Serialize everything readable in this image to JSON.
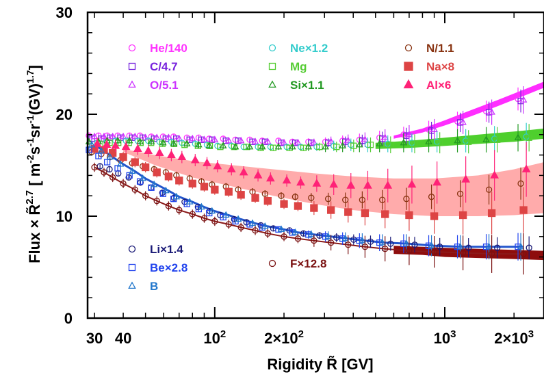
{
  "chart_data": {
    "type": "scatter",
    "xscale": "log",
    "xlim": [
      28,
      2700
    ],
    "ylim": [
      0,
      30
    ],
    "xlabel": "Rigidity R̃ [GV]",
    "ylabel": "Flux × R̃",
    "ylabel_sup": "2.7",
    "ylabel_units": "[ m",
    "ylabel_units_parts": [
      "-2",
      "s",
      "-1",
      "sr",
      "-1",
      "(GV)",
      "1.7",
      "]"
    ],
    "x_ticks": [
      {
        "value": 30,
        "label": "30"
      },
      {
        "value": 40,
        "label": "40"
      },
      {
        "value": 100,
        "label": "10",
        "sup": "2"
      },
      {
        "value": 200,
        "label": "2×10",
        "sup": "2"
      },
      {
        "value": 1000,
        "label": "10",
        "sup": "3"
      },
      {
        "value": 2000,
        "label": "2×10",
        "sup": "3"
      }
    ],
    "y_ticks": [
      {
        "value": 0,
        "label": "0"
      },
      {
        "value": 10,
        "label": "10"
      },
      {
        "value": 20,
        "label": "20"
      },
      {
        "value": 30,
        "label": "30"
      }
    ],
    "grid": false,
    "x": [
      30,
      33,
      36,
      40,
      45,
      50,
      56,
      63,
      70,
      80,
      90,
      100,
      115,
      130,
      150,
      170,
      200,
      230,
      270,
      320,
      380,
      450,
      550,
      700,
      900,
      1200,
      1600,
      2200
    ],
    "series": [
      {
        "name": "He/140",
        "color": "#ff33ff",
        "marker": "circle-open",
        "values": [
          17.9,
          17.9,
          17.9,
          17.9,
          17.9,
          17.9,
          17.8,
          17.8,
          17.8,
          17.7,
          17.7,
          17.6,
          17.6,
          17.5,
          17.5,
          17.4,
          17.4,
          17.3,
          17.3,
          17.3,
          17.4,
          17.5,
          17.7,
          18.0,
          18.5,
          19.3,
          20.3,
          21.5
        ]
      },
      {
        "name": "C/4.7",
        "color": "#7722dd",
        "marker": "square-open",
        "values": [
          17.6,
          17.6,
          17.7,
          17.7,
          17.7,
          17.7,
          17.6,
          17.6,
          17.6,
          17.5,
          17.5,
          17.5,
          17.4,
          17.4,
          17.3,
          17.3,
          17.2,
          17.2,
          17.2,
          17.2,
          17.3,
          17.4,
          17.6,
          17.9,
          18.4,
          19.2,
          20.2,
          21.3
        ]
      },
      {
        "name": "O/5.1",
        "color": "#cc33ff",
        "marker": "triangle-open",
        "values": [
          17.8,
          17.8,
          17.8,
          17.8,
          17.8,
          17.7,
          17.7,
          17.7,
          17.6,
          17.6,
          17.5,
          17.5,
          17.4,
          17.4,
          17.3,
          17.3,
          17.2,
          17.2,
          17.2,
          17.3,
          17.4,
          17.5,
          17.7,
          18.0,
          18.5,
          19.2,
          20.2,
          21.4
        ]
      },
      {
        "name": "Ne×1.2",
        "color": "#33cccc",
        "marker": "circle-open",
        "values": [
          17.2,
          17.3,
          17.4,
          17.4,
          17.4,
          17.4,
          17.3,
          17.3,
          17.2,
          17.1,
          17.0,
          16.9,
          16.9,
          16.8,
          16.8,
          16.8,
          16.8,
          16.8,
          16.8,
          16.9,
          17.0,
          17.0,
          17.1,
          17.2,
          17.3,
          17.4,
          17.6,
          17.8
        ]
      },
      {
        "name": "Mg",
        "color": "#55cc33",
        "marker": "square-open",
        "values": [
          17.1,
          17.2,
          17.2,
          17.2,
          17.2,
          17.2,
          17.1,
          17.1,
          17.0,
          16.9,
          16.9,
          16.8,
          16.8,
          16.8,
          16.7,
          16.7,
          16.7,
          16.7,
          16.8,
          16.8,
          16.9,
          17.0,
          17.0,
          17.1,
          17.2,
          17.3,
          17.5,
          17.7
        ]
      },
      {
        "name": "Si×1.1",
        "color": "#229922",
        "marker": "triangle-open",
        "values": [
          17.3,
          17.3,
          17.4,
          17.4,
          17.4,
          17.3,
          17.3,
          17.2,
          17.1,
          17.1,
          17.0,
          16.9,
          16.9,
          16.8,
          16.8,
          16.8,
          16.8,
          16.8,
          16.8,
          16.8,
          16.9,
          17.0,
          17.1,
          17.2,
          17.3,
          17.4,
          17.5,
          17.7
        ]
      },
      {
        "name": "N/1.1",
        "color": "#883311",
        "marker": "circle-open",
        "values": [
          16.3,
          16.1,
          15.8,
          15.5,
          15.2,
          14.9,
          14.6,
          14.3,
          14.0,
          13.7,
          13.4,
          13.1,
          12.9,
          12.6,
          12.4,
          12.2,
          12.0,
          11.9,
          11.8,
          11.7,
          11.6,
          11.6,
          11.6,
          11.7,
          11.9,
          12.2,
          12.6,
          13.2
        ]
      },
      {
        "name": "Na×8",
        "color": "#dd4444",
        "marker": "square-filled",
        "values": [
          16.6,
          16.5,
          16.2,
          15.8,
          15.3,
          14.8,
          14.3,
          13.9,
          13.5,
          13.2,
          12.9,
          12.6,
          12.4,
          12.1,
          11.8,
          11.5,
          11.2,
          11.0,
          10.8,
          10.6,
          10.4,
          10.3,
          10.2,
          10.1,
          10.0,
          10.1,
          10.3,
          10.6
        ]
      },
      {
        "name": "Al×6",
        "color": "#ff2277",
        "marker": "triangle-filled",
        "values": [
          17.1,
          17.0,
          16.9,
          16.8,
          16.6,
          16.4,
          16.2,
          16.0,
          15.8,
          15.5,
          15.2,
          14.9,
          14.6,
          14.3,
          14.0,
          13.7,
          13.5,
          13.3,
          13.2,
          13.1,
          13.0,
          13.0,
          13.0,
          13.1,
          13.3,
          13.6,
          14.0,
          14.6
        ]
      },
      {
        "name": "Li×1.4",
        "color": "#1a1a77",
        "marker": "circle-open",
        "values": [
          14.9,
          14.6,
          14.2,
          13.8,
          13.3,
          12.8,
          12.3,
          11.8,
          11.4,
          10.9,
          10.5,
          10.1,
          9.7,
          9.4,
          9.1,
          8.8,
          8.6,
          8.3,
          8.1,
          7.9,
          7.7,
          7.5,
          7.3,
          7.2,
          7.0,
          6.9,
          6.9,
          6.9
        ]
      },
      {
        "name": "Be×2.8",
        "color": "#2244ee",
        "marker": "square-open",
        "values": [
          16.5,
          15.9,
          15.3,
          14.7,
          14.0,
          13.4,
          12.8,
          12.2,
          11.7,
          11.2,
          10.7,
          10.3,
          9.9,
          9.5,
          9.2,
          8.9,
          8.7,
          8.4,
          8.2,
          8.0,
          7.8,
          7.6,
          7.4,
          7.3,
          7.1,
          7.0,
          7.0,
          7.0
        ]
      },
      {
        "name": "B",
        "color": "#2277cc",
        "marker": "triangle-open",
        "values": [
          17.0,
          16.4,
          15.8,
          15.1,
          14.4,
          13.7,
          13.1,
          12.5,
          11.9,
          11.4,
          10.9,
          10.5,
          10.1,
          9.7,
          9.3,
          9.0,
          8.7,
          8.4,
          8.2,
          8.0,
          7.8,
          7.6,
          7.4,
          7.3,
          7.1,
          7.0,
          7.0,
          7.0
        ]
      },
      {
        "name": "F×12.8",
        "color": "#7a1111",
        "marker": "circle-open",
        "values": [
          14.8,
          14.3,
          13.8,
          13.2,
          12.6,
          12.0,
          11.5,
          11.0,
          10.6,
          10.2,
          9.8,
          9.5,
          9.2,
          8.9,
          8.6,
          8.3,
          8.0,
          7.8,
          7.6,
          7.4,
          7.2,
          7.0,
          6.8,
          6.6,
          6.5,
          6.4,
          6.3,
          6.3
        ]
      }
    ],
    "bands": [
      {
        "series": "He/140",
        "x": [
          600,
          800,
          1000,
          1300,
          1700,
          2200,
          2700
        ],
        "lower": [
          17.6,
          18.2,
          18.9,
          19.8,
          20.8,
          21.8,
          22.6
        ],
        "upper": [
          17.9,
          18.6,
          19.4,
          20.4,
          21.4,
          22.4,
          23.2
        ]
      },
      {
        "series": "Ne/Mg/Si",
        "x": [
          500,
          700,
          1000,
          1400,
          2000,
          2700
        ],
        "lower": [
          16.6,
          16.7,
          16.9,
          17.1,
          17.3,
          17.6
        ],
        "upper": [
          17.2,
          17.4,
          17.7,
          18.0,
          18.3,
          18.6
        ]
      },
      {
        "series": "Na/Al",
        "x": [
          40,
          55,
          80,
          120,
          180,
          270,
          400,
          600,
          900,
          1400,
          2000,
          2700
        ],
        "lower": [
          16.3,
          15.0,
          13.8,
          12.9,
          12.0,
          11.2,
          10.6,
          10.2,
          10.0,
          10.0,
          10.1,
          10.3
        ],
        "upper": [
          16.6,
          16.0,
          15.4,
          15.0,
          14.6,
          14.2,
          13.9,
          13.7,
          13.7,
          14.0,
          14.6,
          15.3
        ]
      },
      {
        "series": "F×12.8",
        "x": [
          600,
          800,
          1000,
          1400,
          2000,
          2700
        ],
        "lower": [
          6.3,
          6.2,
          6.0,
          5.9,
          5.8,
          5.7
        ],
        "upper": [
          7.1,
          7.0,
          6.9,
          6.8,
          6.7,
          6.6
        ]
      }
    ],
    "legend": [
      {
        "label": "He/140",
        "color": "#ff33ff",
        "marker": "circle-open"
      },
      {
        "label": "C/4.7",
        "color": "#7722dd",
        "marker": "square-open"
      },
      {
        "label": "O/5.1",
        "color": "#cc33ff",
        "marker": "triangle-open"
      },
      {
        "label": "Ne×1.2",
        "color": "#33cccc",
        "marker": "circle-open"
      },
      {
        "label": "Mg",
        "color": "#55cc33",
        "marker": "square-open"
      },
      {
        "label": "Si×1.1",
        "color": "#229922",
        "marker": "triangle-open"
      },
      {
        "label": "N/1.1",
        "color": "#883311",
        "marker": "circle-open"
      },
      {
        "label": "Na×8",
        "color": "#dd4444",
        "marker": "square-filled"
      },
      {
        "label": "Al×6",
        "color": "#ff2277",
        "marker": "triangle-filled"
      },
      {
        "label": "Li×1.4",
        "color": "#1a1a77",
        "marker": "circle-open"
      },
      {
        "label": "Be×2.8",
        "color": "#2244ee",
        "marker": "square-open"
      },
      {
        "label": "B",
        "color": "#2277cc",
        "marker": "triangle-open"
      },
      {
        "label": "F×12.8",
        "color": "#7a1111",
        "marker": "circle-open"
      }
    ],
    "colors": {
      "He_band": "#ff22ff",
      "NeMgSi_band": "#44cc22",
      "NaAl_band": "#ff6666",
      "LiBeB_band": "#2255cc",
      "F_band": "#880000",
      "N_line": "#8b1a1a"
    }
  }
}
